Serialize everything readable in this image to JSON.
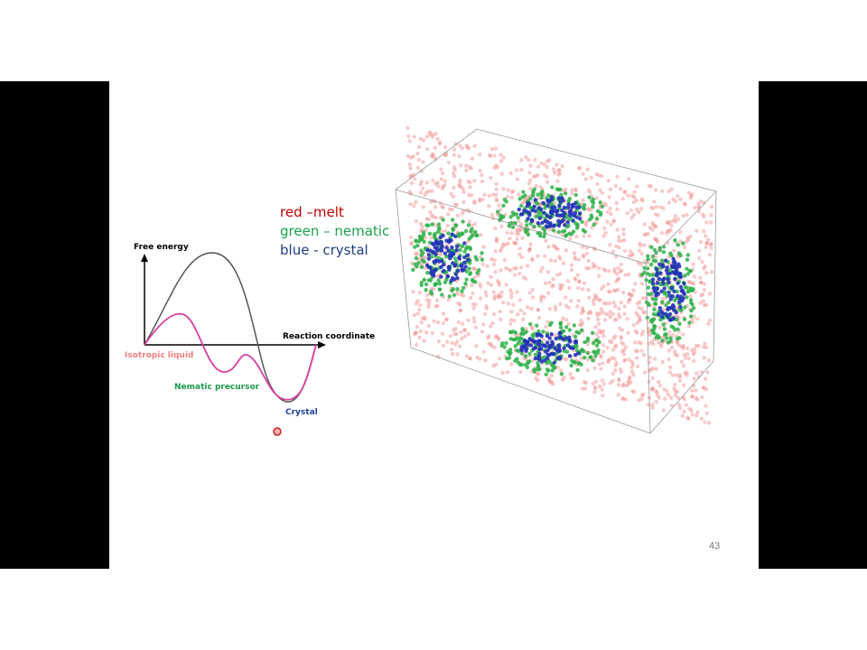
{
  "legend": {
    "items": [
      "red –melt",
      "green – nematic",
      "blue - crystal"
    ]
  },
  "diagram": {
    "y_axis_label": "Free energy",
    "x_axis_label": "Reaction coordinate",
    "isotropic_label": "Isotropic liquid",
    "nematic_label": "Nematic precursor",
    "crystal_label": "Crystal"
  },
  "page_number": "43"
}
